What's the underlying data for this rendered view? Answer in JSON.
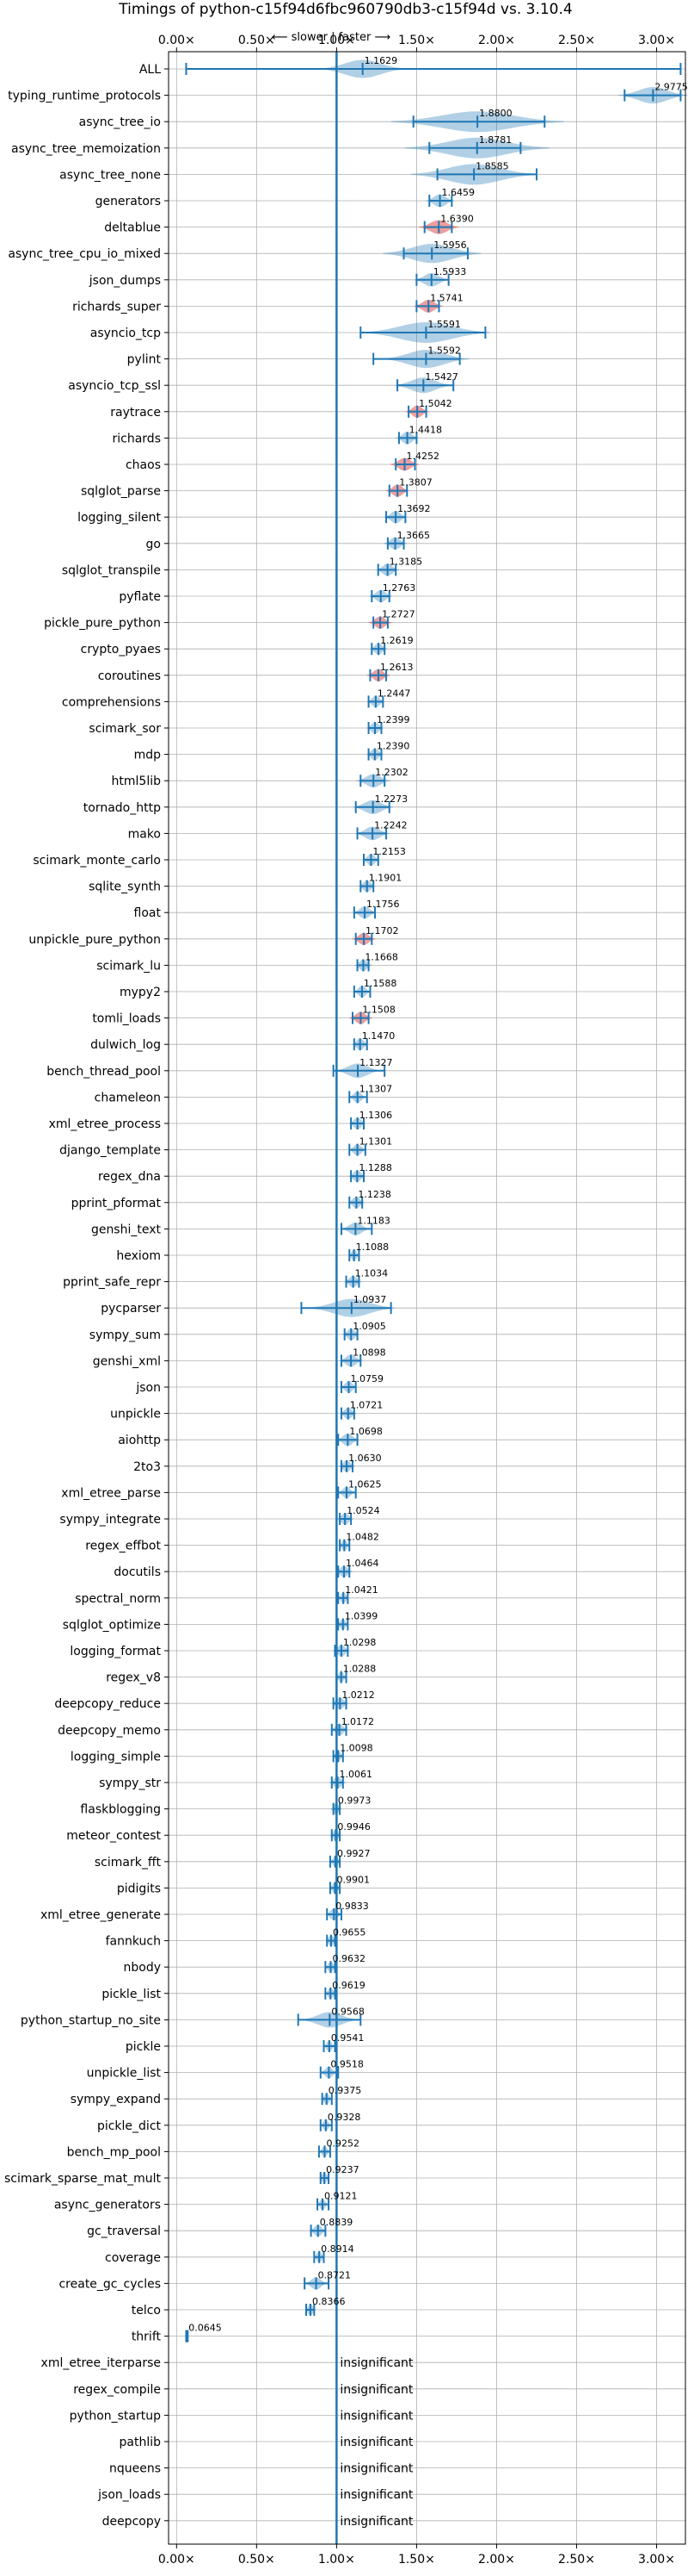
{
  "chart_data": {
    "type": "violin",
    "title": "Timings of python-c15f94d6fbc960790db3-c15f94d vs. 3.10.4",
    "annotation": "⟵ slower | faster ⟶",
    "xlim": [
      -0.05,
      3.18
    ],
    "xticks": [
      0,
      0.5,
      1,
      1.5,
      2,
      2.5,
      3
    ],
    "xtick_labels": [
      "0.00×",
      "0.50×",
      "1.00×",
      "1.50×",
      "2.00×",
      "2.50×",
      "3.00×"
    ],
    "reference_line": 1.0,
    "grid": true,
    "colors": {
      "faster": "#1f77b4",
      "slower": "#d62728"
    },
    "insignificant_label": "insignificant",
    "benchmarks": [
      {
        "name": "ALL",
        "value": 1.1629,
        "label": "1.1629",
        "lo": 0.06,
        "hi": 3.15,
        "spread": 0.15,
        "slower": false
      },
      {
        "name": "typing_runtime_protocols",
        "value": 2.9775,
        "label": "2.9775",
        "lo": 2.8,
        "hi": 3.15,
        "spread": 0.12,
        "slower": false
      },
      {
        "name": "async_tree_io",
        "value": 1.88,
        "label": "1.8800",
        "lo": 1.48,
        "hi": 2.3,
        "spread": 0.3,
        "slower": false
      },
      {
        "name": "async_tree_memoization",
        "value": 1.8781,
        "label": "1.8781",
        "lo": 1.58,
        "hi": 2.15,
        "spread": 0.25,
        "slower": false
      },
      {
        "name": "async_tree_none",
        "value": 1.8585,
        "label": "1.8585",
        "lo": 1.63,
        "hi": 2.25,
        "spread": 0.22,
        "slower": false
      },
      {
        "name": "generators",
        "value": 1.6459,
        "label": "1.6459",
        "lo": 1.58,
        "hi": 1.72,
        "spread": 0.05,
        "slower": false
      },
      {
        "name": "deltablue",
        "value": 1.639,
        "label": "1.6390",
        "lo": 1.55,
        "hi": 1.72,
        "spread": 0.07,
        "slower": true
      },
      {
        "name": "async_tree_cpu_io_mixed",
        "value": 1.5956,
        "label": "1.5956",
        "lo": 1.42,
        "hi": 1.82,
        "spread": 0.17,
        "slower": false
      },
      {
        "name": "json_dumps",
        "value": 1.5933,
        "label": "1.5933",
        "lo": 1.5,
        "hi": 1.7,
        "spread": 0.06,
        "slower": false
      },
      {
        "name": "richards_super",
        "value": 1.5741,
        "label": "1.5741",
        "lo": 1.5,
        "hi": 1.64,
        "spread": 0.05,
        "slower": true
      },
      {
        "name": "asyncio_tcp",
        "value": 1.5591,
        "label": "1.5591",
        "lo": 1.15,
        "hi": 1.93,
        "spread": 0.22,
        "slower": false
      },
      {
        "name": "pylint",
        "value": 1.5592,
        "label": "1.5592",
        "lo": 1.23,
        "hi": 1.77,
        "spread": 0.15,
        "slower": false
      },
      {
        "name": "asyncio_tcp_ssl",
        "value": 1.5427,
        "label": "1.5427",
        "lo": 1.38,
        "hi": 1.73,
        "spread": 0.1,
        "slower": false
      },
      {
        "name": "raytrace",
        "value": 1.5042,
        "label": "1.5042",
        "lo": 1.45,
        "hi": 1.56,
        "spread": 0.04,
        "slower": true
      },
      {
        "name": "richards",
        "value": 1.4418,
        "label": "1.4418",
        "lo": 1.39,
        "hi": 1.5,
        "spread": 0.04,
        "slower": false
      },
      {
        "name": "chaos",
        "value": 1.4252,
        "label": "1.4252",
        "lo": 1.37,
        "hi": 1.49,
        "spread": 0.05,
        "slower": true
      },
      {
        "name": "sqlglot_parse",
        "value": 1.3807,
        "label": "1.3807",
        "lo": 1.33,
        "hi": 1.44,
        "spread": 0.04,
        "slower": true
      },
      {
        "name": "logging_silent",
        "value": 1.3692,
        "label": "1.3692",
        "lo": 1.31,
        "hi": 1.43,
        "spread": 0.04,
        "slower": false
      },
      {
        "name": "go",
        "value": 1.3665,
        "label": "1.3665",
        "lo": 1.32,
        "hi": 1.42,
        "spread": 0.04,
        "slower": false
      },
      {
        "name": "sqlglot_transpile",
        "value": 1.3185,
        "label": "1.3185",
        "lo": 1.26,
        "hi": 1.37,
        "spread": 0.04,
        "slower": false
      },
      {
        "name": "pyflate",
        "value": 1.2763,
        "label": "1.2763",
        "lo": 1.22,
        "hi": 1.33,
        "spread": 0.04,
        "slower": false
      },
      {
        "name": "pickle_pure_python",
        "value": 1.2727,
        "label": "1.2727",
        "lo": 1.23,
        "hi": 1.32,
        "spread": 0.04,
        "slower": true
      },
      {
        "name": "crypto_pyaes",
        "value": 1.2619,
        "label": "1.2619",
        "lo": 1.22,
        "hi": 1.3,
        "spread": 0.03,
        "slower": false
      },
      {
        "name": "coroutines",
        "value": 1.2613,
        "label": "1.2613",
        "lo": 1.21,
        "hi": 1.31,
        "spread": 0.04,
        "slower": true
      },
      {
        "name": "comprehensions",
        "value": 1.2447,
        "label": "1.2447",
        "lo": 1.2,
        "hi": 1.29,
        "spread": 0.03,
        "slower": false
      },
      {
        "name": "scimark_sor",
        "value": 1.2399,
        "label": "1.2399",
        "lo": 1.2,
        "hi": 1.28,
        "spread": 0.03,
        "slower": false
      },
      {
        "name": "mdp",
        "value": 1.239,
        "label": "1.2390",
        "lo": 1.2,
        "hi": 1.28,
        "spread": 0.03,
        "slower": false
      },
      {
        "name": "html5lib",
        "value": 1.2302,
        "label": "1.2302",
        "lo": 1.15,
        "hi": 1.3,
        "spread": 0.06,
        "slower": false
      },
      {
        "name": "tornado_http",
        "value": 1.2273,
        "label": "1.2273",
        "lo": 1.12,
        "hi": 1.33,
        "spread": 0.07,
        "slower": false
      },
      {
        "name": "mako",
        "value": 1.2242,
        "label": "1.2242",
        "lo": 1.13,
        "hi": 1.31,
        "spread": 0.06,
        "slower": false
      },
      {
        "name": "scimark_monte_carlo",
        "value": 1.2153,
        "label": "1.2153",
        "lo": 1.17,
        "hi": 1.26,
        "spread": 0.03,
        "slower": false
      },
      {
        "name": "sqlite_synth",
        "value": 1.1901,
        "label": "1.1901",
        "lo": 1.15,
        "hi": 1.23,
        "spread": 0.03,
        "slower": false
      },
      {
        "name": "float",
        "value": 1.1756,
        "label": "1.1756",
        "lo": 1.11,
        "hi": 1.24,
        "spread": 0.04,
        "slower": false
      },
      {
        "name": "unpickle_pure_python",
        "value": 1.1702,
        "label": "1.1702",
        "lo": 1.12,
        "hi": 1.22,
        "spread": 0.04,
        "slower": true
      },
      {
        "name": "scimark_lu",
        "value": 1.1668,
        "label": "1.1668",
        "lo": 1.13,
        "hi": 1.2,
        "spread": 0.03,
        "slower": false
      },
      {
        "name": "mypy2",
        "value": 1.1588,
        "label": "1.1588",
        "lo": 1.11,
        "hi": 1.21,
        "spread": 0.03,
        "slower": false
      },
      {
        "name": "tomli_loads",
        "value": 1.1508,
        "label": "1.1508",
        "lo": 1.1,
        "hi": 1.2,
        "spread": 0.04,
        "slower": true
      },
      {
        "name": "dulwich_log",
        "value": 1.147,
        "label": "1.1470",
        "lo": 1.11,
        "hi": 1.19,
        "spread": 0.03,
        "slower": false
      },
      {
        "name": "bench_thread_pool",
        "value": 1.1327,
        "label": "1.1327",
        "lo": 0.98,
        "hi": 1.3,
        "spread": 0.08,
        "slower": false
      },
      {
        "name": "chameleon",
        "value": 1.1307,
        "label": "1.1307",
        "lo": 1.08,
        "hi": 1.19,
        "spread": 0.03,
        "slower": false
      },
      {
        "name": "xml_etree_process",
        "value": 1.1306,
        "label": "1.1306",
        "lo": 1.09,
        "hi": 1.17,
        "spread": 0.03,
        "slower": false
      },
      {
        "name": "django_template",
        "value": 1.1301,
        "label": "1.1301",
        "lo": 1.08,
        "hi": 1.18,
        "spread": 0.03,
        "slower": false
      },
      {
        "name": "regex_dna",
        "value": 1.1288,
        "label": "1.1288",
        "lo": 1.09,
        "hi": 1.17,
        "spread": 0.03,
        "slower": false
      },
      {
        "name": "pprint_pformat",
        "value": 1.1238,
        "label": "1.1238",
        "lo": 1.08,
        "hi": 1.16,
        "spread": 0.03,
        "slower": false
      },
      {
        "name": "genshi_text",
        "value": 1.1183,
        "label": "1.1183",
        "lo": 1.03,
        "hi": 1.22,
        "spread": 0.05,
        "slower": false
      },
      {
        "name": "hexiom",
        "value": 1.1088,
        "label": "1.1088",
        "lo": 1.08,
        "hi": 1.14,
        "spread": 0.02,
        "slower": false
      },
      {
        "name": "pprint_safe_repr",
        "value": 1.1034,
        "label": "1.1034",
        "lo": 1.06,
        "hi": 1.14,
        "spread": 0.03,
        "slower": false
      },
      {
        "name": "pycparser",
        "value": 1.0937,
        "label": "1.0937",
        "lo": 0.78,
        "hi": 1.34,
        "spread": 0.15,
        "slower": false
      },
      {
        "name": "sympy_sum",
        "value": 1.0905,
        "label": "1.0905",
        "lo": 1.05,
        "hi": 1.13,
        "spread": 0.03,
        "slower": false
      },
      {
        "name": "genshi_xml",
        "value": 1.0898,
        "label": "1.0898",
        "lo": 1.03,
        "hi": 1.15,
        "spread": 0.04,
        "slower": false
      },
      {
        "name": "json",
        "value": 1.0759,
        "label": "1.0759",
        "lo": 1.03,
        "hi": 1.12,
        "spread": 0.03,
        "slower": false
      },
      {
        "name": "unpickle",
        "value": 1.0721,
        "label": "1.0721",
        "lo": 1.03,
        "hi": 1.11,
        "spread": 0.03,
        "slower": false
      },
      {
        "name": "aiohttp",
        "value": 1.0698,
        "label": "1.0698",
        "lo": 1.01,
        "hi": 1.13,
        "spread": 0.04,
        "slower": false
      },
      {
        "name": "2to3",
        "value": 1.063,
        "label": "1.0630",
        "lo": 1.03,
        "hi": 1.1,
        "spread": 0.03,
        "slower": false
      },
      {
        "name": "xml_etree_parse",
        "value": 1.0625,
        "label": "1.0625",
        "lo": 1.01,
        "hi": 1.12,
        "spread": 0.03,
        "slower": false
      },
      {
        "name": "sympy_integrate",
        "value": 1.0524,
        "label": "1.0524",
        "lo": 1.02,
        "hi": 1.09,
        "spread": 0.03,
        "slower": false
      },
      {
        "name": "regex_effbot",
        "value": 1.0482,
        "label": "1.0482",
        "lo": 1.02,
        "hi": 1.08,
        "spread": 0.02,
        "slower": false
      },
      {
        "name": "docutils",
        "value": 1.0464,
        "label": "1.0464",
        "lo": 1.01,
        "hi": 1.08,
        "spread": 0.03,
        "slower": false
      },
      {
        "name": "spectral_norm",
        "value": 1.0421,
        "label": "1.0421",
        "lo": 1.01,
        "hi": 1.07,
        "spread": 0.02,
        "slower": false
      },
      {
        "name": "sqlglot_optimize",
        "value": 1.0399,
        "label": "1.0399",
        "lo": 1.01,
        "hi": 1.07,
        "spread": 0.02,
        "slower": false
      },
      {
        "name": "logging_format",
        "value": 1.0298,
        "label": "1.0298",
        "lo": 0.99,
        "hi": 1.07,
        "spread": 0.03,
        "slower": false
      },
      {
        "name": "regex_v8",
        "value": 1.0288,
        "label": "1.0288",
        "lo": 1.0,
        "hi": 1.06,
        "spread": 0.02,
        "slower": false
      },
      {
        "name": "deepcopy_reduce",
        "value": 1.0212,
        "label": "1.0212",
        "lo": 0.98,
        "hi": 1.06,
        "spread": 0.03,
        "slower": false
      },
      {
        "name": "deepcopy_memo",
        "value": 1.0172,
        "label": "1.0172",
        "lo": 0.97,
        "hi": 1.06,
        "spread": 0.03,
        "slower": false
      },
      {
        "name": "logging_simple",
        "value": 1.0098,
        "label": "1.0098",
        "lo": 0.98,
        "hi": 1.04,
        "spread": 0.02,
        "slower": false
      },
      {
        "name": "sympy_str",
        "value": 1.0061,
        "label": "1.0061",
        "lo": 0.97,
        "hi": 1.04,
        "spread": 0.03,
        "slower": false
      },
      {
        "name": "flaskblogging",
        "value": 0.9973,
        "label": "0.9973",
        "lo": 0.98,
        "hi": 1.02,
        "spread": 0.02,
        "slower": false
      },
      {
        "name": "meteor_contest",
        "value": 0.9946,
        "label": "0.9946",
        "lo": 0.97,
        "hi": 1.02,
        "spread": 0.02,
        "slower": false
      },
      {
        "name": "scimark_fft",
        "value": 0.9927,
        "label": "0.9927",
        "lo": 0.96,
        "hi": 1.02,
        "spread": 0.02,
        "slower": false
      },
      {
        "name": "pidigits",
        "value": 0.9901,
        "label": "0.9901",
        "lo": 0.96,
        "hi": 1.02,
        "spread": 0.02,
        "slower": false
      },
      {
        "name": "xml_etree_generate",
        "value": 0.9833,
        "label": "0.9833",
        "lo": 0.94,
        "hi": 1.03,
        "spread": 0.03,
        "slower": false
      },
      {
        "name": "fannkuch",
        "value": 0.9655,
        "label": "0.9655",
        "lo": 0.94,
        "hi": 0.99,
        "spread": 0.02,
        "slower": false
      },
      {
        "name": "nbody",
        "value": 0.9632,
        "label": "0.9632",
        "lo": 0.93,
        "hi": 0.99,
        "spread": 0.02,
        "slower": false
      },
      {
        "name": "pickle_list",
        "value": 0.9619,
        "label": "0.9619",
        "lo": 0.93,
        "hi": 0.99,
        "spread": 0.02,
        "slower": false
      },
      {
        "name": "python_startup_no_site",
        "value": 0.9568,
        "label": "0.9568",
        "lo": 0.76,
        "hi": 1.15,
        "spread": 0.1,
        "slower": false
      },
      {
        "name": "pickle",
        "value": 0.9541,
        "label": "0.9541",
        "lo": 0.92,
        "hi": 0.99,
        "spread": 0.02,
        "slower": false
      },
      {
        "name": "unpickle_list",
        "value": 0.9518,
        "label": "0.9518",
        "lo": 0.9,
        "hi": 1.01,
        "spread": 0.03,
        "slower": false
      },
      {
        "name": "sympy_expand",
        "value": 0.9375,
        "label": "0.9375",
        "lo": 0.91,
        "hi": 0.97,
        "spread": 0.02,
        "slower": false
      },
      {
        "name": "pickle_dict",
        "value": 0.9328,
        "label": "0.9328",
        "lo": 0.9,
        "hi": 0.97,
        "spread": 0.02,
        "slower": false
      },
      {
        "name": "bench_mp_pool",
        "value": 0.9252,
        "label": "0.9252",
        "lo": 0.89,
        "hi": 0.96,
        "spread": 0.02,
        "slower": false
      },
      {
        "name": "scimark_sparse_mat_mult",
        "value": 0.9237,
        "label": "0.9237",
        "lo": 0.9,
        "hi": 0.95,
        "spread": 0.02,
        "slower": false
      },
      {
        "name": "async_generators",
        "value": 0.9121,
        "label": "0.9121",
        "lo": 0.88,
        "hi": 0.95,
        "spread": 0.02,
        "slower": false
      },
      {
        "name": "gc_traversal",
        "value": 0.8839,
        "label": "0.8839",
        "lo": 0.84,
        "hi": 0.93,
        "spread": 0.03,
        "slower": false
      },
      {
        "name": "coverage",
        "value": 0.8914,
        "label": "0.8914",
        "lo": 0.86,
        "hi": 0.92,
        "spread": 0.02,
        "slower": false
      },
      {
        "name": "create_gc_cycles",
        "value": 0.8721,
        "label": "0.8721",
        "lo": 0.8,
        "hi": 0.95,
        "spread": 0.04,
        "slower": false
      },
      {
        "name": "telco",
        "value": 0.8366,
        "label": "0.8366",
        "lo": 0.81,
        "hi": 0.86,
        "spread": 0.02,
        "slower": false
      },
      {
        "name": "thrift",
        "value": 0.0645,
        "label": "0.0645",
        "lo": 0.06,
        "hi": 0.07,
        "spread": 0.0,
        "slower": false
      },
      {
        "name": "xml_etree_iterparse",
        "insignificant": true
      },
      {
        "name": "regex_compile",
        "insignificant": true
      },
      {
        "name": "python_startup",
        "insignificant": true
      },
      {
        "name": "pathlib",
        "insignificant": true
      },
      {
        "name": "nqueens",
        "insignificant": true
      },
      {
        "name": "json_loads",
        "insignificant": true
      },
      {
        "name": "deepcopy",
        "insignificant": true
      }
    ]
  }
}
